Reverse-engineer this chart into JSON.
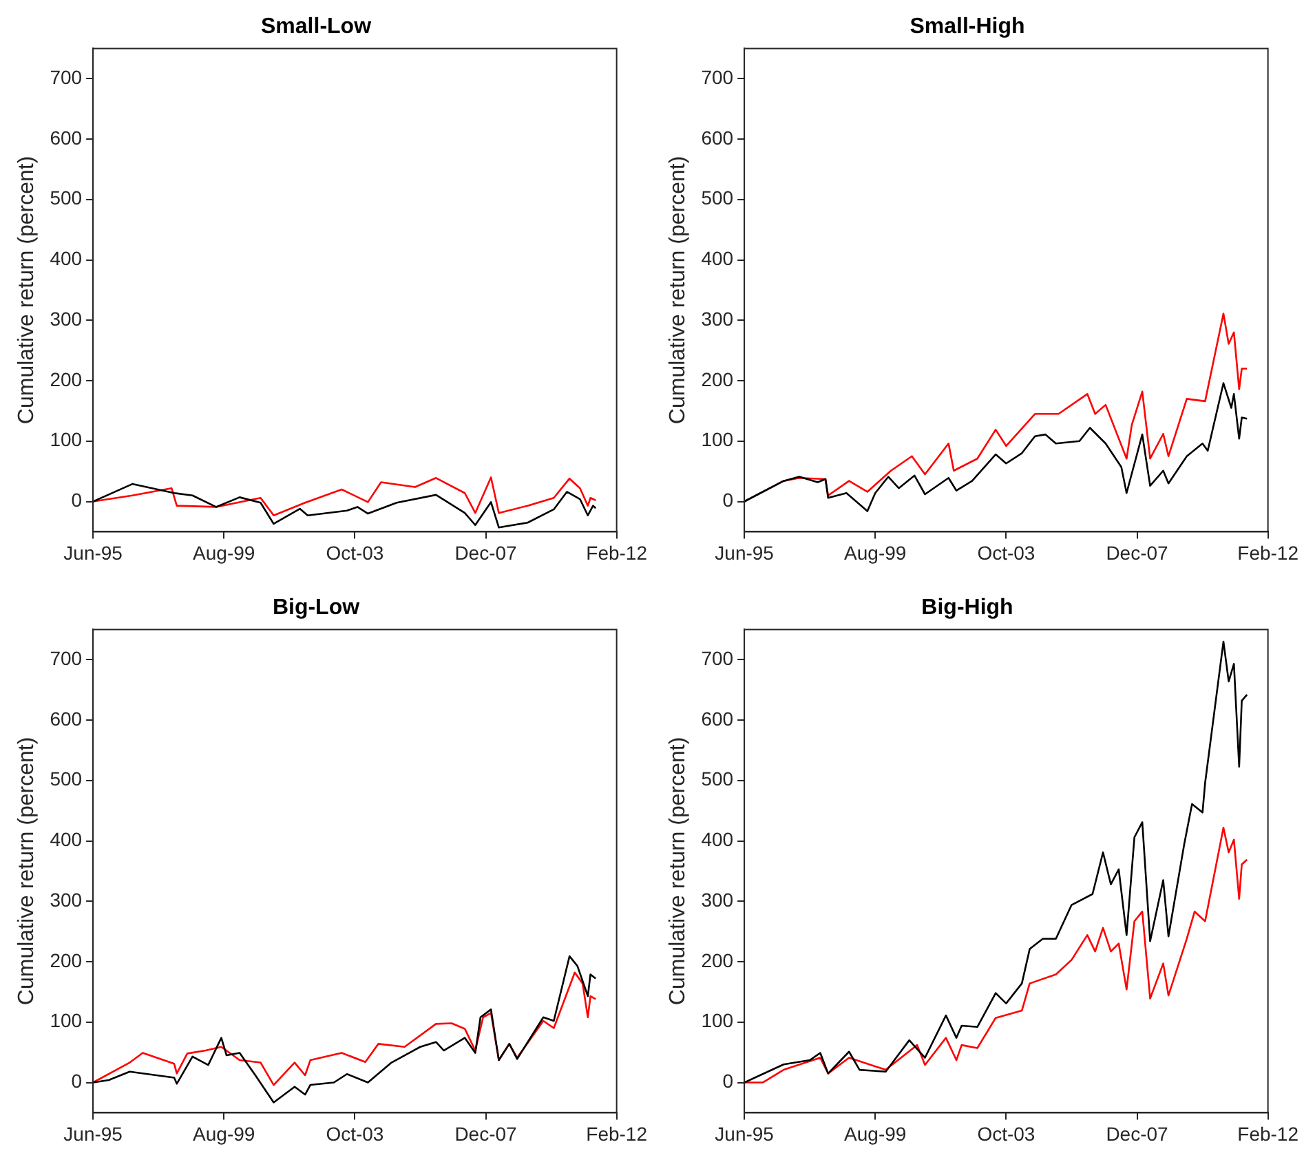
{
  "chart_data": [
    {
      "type": "line",
      "title": "Small-Low",
      "ylabel": "Cumulative return (percent)",
      "xlim": [
        "1995-06",
        "2012-02"
      ],
      "ylim": [
        -50,
        750
      ],
      "yticks": [
        0,
        100,
        200,
        300,
        400,
        500,
        600,
        700
      ],
      "xticks": [
        {
          "value": "1995-06",
          "label": "Jun-95"
        },
        {
          "value": "1999-08",
          "label": "Aug-99"
        },
        {
          "value": "2003-10",
          "label": "Oct-03"
        },
        {
          "value": "2007-12",
          "label": "Dec-07"
        },
        {
          "value": "2012-02",
          "label": "Feb-12"
        }
      ],
      "legend": false,
      "grid": false,
      "series": [
        {
          "color": "#000000",
          "x": [
            "1995-06",
            "1996-09",
            "1998-01",
            "1998-08",
            "1999-05",
            "2000-02",
            "2000-10",
            "2001-03",
            "2002-01",
            "2002-04",
            "2003-07",
            "2003-11",
            "2004-03",
            "2005-02",
            "2006-05",
            "2007-04",
            "2007-08",
            "2008-02",
            "2008-05",
            "2009-04",
            "2010-02",
            "2010-07",
            "2010-12",
            "2011-03",
            "2011-05",
            "2011-06"
          ],
          "values": [
            0,
            29,
            14,
            10,
            -9,
            7,
            -2,
            -37,
            -12,
            -23,
            -15,
            -9,
            -20,
            -2,
            11,
            -19,
            -39,
            -1,
            -43,
            -35,
            -13,
            16,
            4,
            -23,
            -7,
            -11
          ]
        },
        {
          "color": "#ff0000",
          "x": [
            "1995-06",
            "1996-09",
            "1997-12",
            "1998-02",
            "1999-05",
            "2000-10",
            "2001-03",
            "2002-03",
            "2003-05",
            "2004-03",
            "2004-08",
            "2005-09",
            "2006-05",
            "2007-04",
            "2007-08",
            "2008-02",
            "2008-05",
            "2009-04",
            "2010-02",
            "2010-08",
            "2010-12",
            "2011-03",
            "2011-04",
            "2011-06"
          ],
          "values": [
            0,
            10,
            22,
            -7,
            -9,
            6,
            -23,
            -2,
            20,
            -1,
            32,
            24,
            39,
            14,
            -19,
            40,
            -19,
            -7,
            6,
            38,
            22,
            -7,
            6,
            2
          ]
        }
      ]
    },
    {
      "type": "line",
      "title": "Small-High",
      "ylabel": "Cumulative return (percent)",
      "xlim": [
        "1995-06",
        "2012-02"
      ],
      "ylim": [
        -50,
        750
      ],
      "yticks": [
        0,
        100,
        200,
        300,
        400,
        500,
        600,
        700
      ],
      "xticks": [
        {
          "value": "1995-06",
          "label": "Jun-95"
        },
        {
          "value": "1999-08",
          "label": "Aug-99"
        },
        {
          "value": "2003-10",
          "label": "Oct-03"
        },
        {
          "value": "2007-12",
          "label": "Dec-07"
        },
        {
          "value": "2012-02",
          "label": "Feb-12"
        }
      ],
      "legend": false,
      "grid": false,
      "series": [
        {
          "color": "#000000",
          "x": [
            "1995-06",
            "1996-09",
            "1997-03",
            "1997-10",
            "1998-01",
            "1998-02",
            "1998-09",
            "1999-05",
            "1999-08",
            "2000-01",
            "2000-05",
            "2000-11",
            "2001-03",
            "2001-12",
            "2002-03",
            "2002-09",
            "2003-06",
            "2003-10",
            "2004-04",
            "2004-09",
            "2005-01",
            "2005-05",
            "2006-02",
            "2006-06",
            "2006-12",
            "2007-06",
            "2007-08",
            "2008-02",
            "2008-05",
            "2008-10",
            "2008-12",
            "2009-07",
            "2010-01",
            "2010-03",
            "2010-09",
            "2010-12",
            "2011-01",
            "2011-03",
            "2011-04",
            "2011-06"
          ],
          "values": [
            0,
            34,
            41,
            32,
            37,
            6,
            14,
            -16,
            14,
            41,
            22,
            43,
            12,
            39,
            18,
            34,
            78,
            63,
            80,
            108,
            111,
            96,
            100,
            122,
            96,
            57,
            14,
            111,
            26,
            51,
            30,
            75,
            96,
            84,
            196,
            155,
            178,
            104,
            139,
            137
          ]
        },
        {
          "color": "#ff0000",
          "x": [
            "1995-06",
            "1996-09",
            "1997-03",
            "1998-01",
            "1998-02",
            "1998-10",
            "1999-05",
            "2000-02",
            "2000-10",
            "2001-03",
            "2001-12",
            "2002-02",
            "2002-11",
            "2003-06",
            "2003-10",
            "2004-09",
            "2005-06",
            "2006-05",
            "2006-08",
            "2006-12",
            "2007-08",
            "2007-10",
            "2008-02",
            "2008-05",
            "2008-10",
            "2008-12",
            "2009-07",
            "2010-02",
            "2010-09",
            "2010-11",
            "2011-01",
            "2011-03",
            "2011-04",
            "2011-06"
          ],
          "values": [
            0,
            34,
            39,
            37,
            10,
            34,
            16,
            51,
            75,
            45,
            96,
            51,
            71,
            119,
            92,
            145,
            145,
            178,
            145,
            160,
            71,
            127,
            182,
            71,
            112,
            75,
            170,
            166,
            311,
            261,
            280,
            186,
            220,
            220
          ]
        }
      ]
    },
    {
      "type": "line",
      "title": "Big-Low",
      "ylabel": "Cumulative return (percent)",
      "xlim": [
        "1995-06",
        "2012-02"
      ],
      "ylim": [
        -50,
        750
      ],
      "yticks": [
        0,
        100,
        200,
        300,
        400,
        500,
        600,
        700
      ],
      "xticks": [
        {
          "value": "1995-06",
          "label": "Jun-95"
        },
        {
          "value": "1999-08",
          "label": "Aug-99"
        },
        {
          "value": "2003-10",
          "label": "Oct-03"
        },
        {
          "value": "2007-12",
          "label": "Dec-07"
        },
        {
          "value": "2012-02",
          "label": "Feb-12"
        }
      ],
      "legend": false,
      "grid": false,
      "series": [
        {
          "color": "#000000",
          "x": [
            "1995-06",
            "1995-12",
            "1996-08",
            "1998-01",
            "1998-02",
            "1998-08",
            "1999-02",
            "1999-07",
            "1999-09",
            "2000-02",
            "2000-08",
            "2001-03",
            "2001-11",
            "2002-03",
            "2002-05",
            "2003-02",
            "2003-07",
            "2004-03",
            "2004-12",
            "2005-11",
            "2006-05",
            "2006-08",
            "2007-04",
            "2007-08",
            "2007-10",
            "2008-02",
            "2008-05",
            "2008-09",
            "2008-12",
            "2009-10",
            "2010-02",
            "2010-08",
            "2010-11",
            "2011-03",
            "2011-04",
            "2011-06"
          ],
          "values": [
            0,
            4,
            18,
            8,
            -2,
            43,
            29,
            74,
            45,
            49,
            12,
            -33,
            -7,
            -20,
            -4,
            0,
            14,
            0,
            33,
            59,
            67,
            53,
            74,
            49,
            108,
            121,
            37,
            64,
            39,
            108,
            102,
            209,
            193,
            143,
            179,
            172
          ]
        },
        {
          "color": "#ff0000",
          "x": [
            "1995-06",
            "1996-08",
            "1997-01",
            "1998-01",
            "1998-02",
            "1998-06",
            "1999-01",
            "1999-07",
            "2000-02",
            "2000-10",
            "2001-03",
            "2001-11",
            "2002-03",
            "2002-05",
            "2003-05",
            "2004-02",
            "2004-07",
            "2005-05",
            "2006-05",
            "2006-11",
            "2007-04",
            "2007-08",
            "2007-11",
            "2008-02",
            "2008-05",
            "2008-09",
            "2008-12",
            "2009-10",
            "2010-02",
            "2010-10",
            "2011-01",
            "2011-03",
            "2011-04",
            "2011-06"
          ],
          "values": [
            0,
            33,
            49,
            31,
            15,
            48,
            53,
            59,
            37,
            33,
            -4,
            33,
            12,
            37,
            49,
            34,
            64,
            59,
            97,
            98,
            89,
            53,
            108,
            115,
            37,
            64,
            41,
            102,
            90,
            182,
            164,
            108,
            143,
            138
          ]
        }
      ]
    },
    {
      "type": "line",
      "title": "Big-High",
      "ylabel": "Cumulative return (percent)",
      "xlim": [
        "1995-06",
        "2012-02"
      ],
      "ylim": [
        -50,
        750
      ],
      "yticks": [
        0,
        100,
        200,
        300,
        400,
        500,
        600,
        700
      ],
      "xticks": [
        {
          "value": "1995-06",
          "label": "Jun-95"
        },
        {
          "value": "1999-08",
          "label": "Aug-99"
        },
        {
          "value": "2003-10",
          "label": "Oct-03"
        },
        {
          "value": "2007-12",
          "label": "Dec-07"
        },
        {
          "value": "2012-02",
          "label": "Feb-12"
        }
      ],
      "legend": false,
      "grid": false,
      "series": [
        {
          "color": "#000000",
          "x": [
            "1995-06",
            "1995-12",
            "1996-09",
            "1997-07",
            "1997-11",
            "1998-02",
            "1998-10",
            "1999-02",
            "1999-12",
            "2000-09",
            "2001-03",
            "2001-11",
            "2002-03",
            "2002-05",
            "2002-11",
            "2003-06",
            "2003-10",
            "2004-04",
            "2004-07",
            "2004-12",
            "2005-05",
            "2005-11",
            "2006-07",
            "2006-11",
            "2007-02",
            "2007-05",
            "2007-08",
            "2007-11",
            "2008-02",
            "2008-05",
            "2008-10",
            "2008-12",
            "2009-06",
            "2009-09",
            "2010-01",
            "2010-02",
            "2010-09",
            "2010-11",
            "2011-01",
            "2011-03",
            "2011-04",
            "2011-06"
          ],
          "values": [
            0,
            12,
            30,
            37,
            49,
            15,
            51,
            21,
            18,
            70,
            41,
            111,
            74,
            94,
            92,
            148,
            131,
            164,
            221,
            238,
            238,
            294,
            312,
            381,
            328,
            353,
            244,
            406,
            431,
            234,
            335,
            242,
            394,
            461,
            447,
            496,
            730,
            664,
            693,
            523,
            632,
            642
          ]
        },
        {
          "color": "#ff0000",
          "x": [
            "1995-06",
            "1996-01",
            "1996-09",
            "1997-11",
            "1998-02",
            "1998-10",
            "1999-12",
            "2000-12",
            "2001-03",
            "2001-11",
            "2002-03",
            "2002-05",
            "2002-11",
            "2003-06",
            "2004-04",
            "2004-07",
            "2005-05",
            "2005-11",
            "2006-05",
            "2006-08",
            "2006-11",
            "2007-02",
            "2007-05",
            "2007-08",
            "2007-11",
            "2008-02",
            "2008-05",
            "2008-10",
            "2008-12",
            "2009-07",
            "2009-10",
            "2010-02",
            "2010-09",
            "2010-11",
            "2011-01",
            "2011-03",
            "2011-04",
            "2011-06"
          ],
          "values": [
            0,
            0,
            21,
            41,
            15,
            41,
            21,
            62,
            29,
            74,
            37,
            62,
            57,
            107,
            119,
            164,
            179,
            203,
            244,
            217,
            256,
            217,
            230,
            154,
            267,
            283,
            139,
            197,
            144,
            238,
            283,
            267,
            422,
            381,
            402,
            304,
            361,
            369
          ]
        }
      ]
    }
  ]
}
